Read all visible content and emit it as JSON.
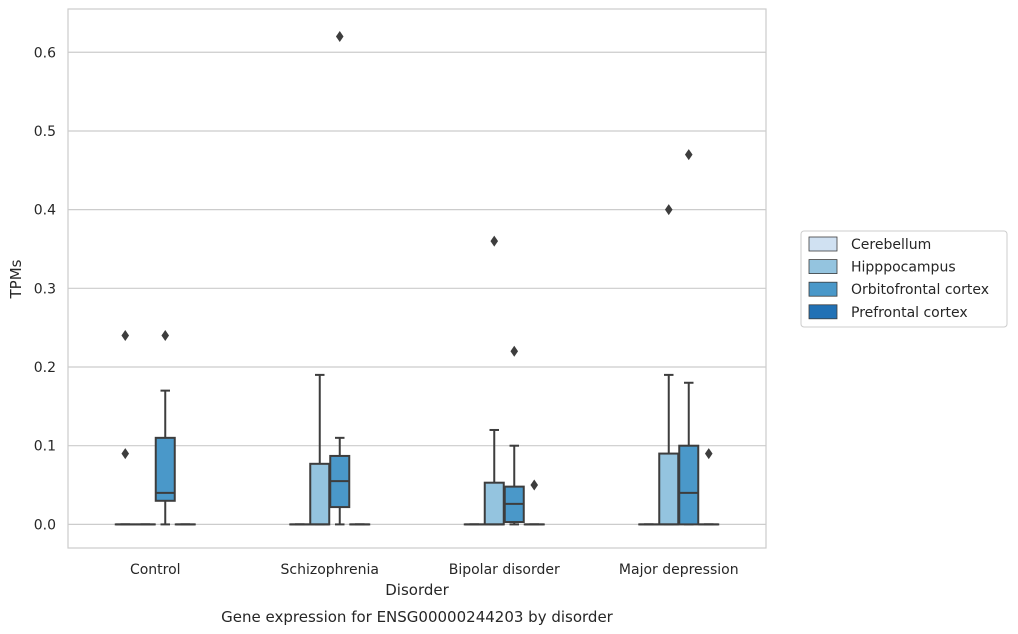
{
  "chart_data": {
    "type": "box",
    "caption": "Gene expression for ENSG00000244203 by disorder",
    "xlabel": "Disorder",
    "ylabel": "TPMs",
    "categories": [
      "Control",
      "Schizophrenia",
      "Bipolar disorder",
      "Major depression"
    ],
    "ylim": [
      -0.03,
      0.655
    ],
    "yticks": [
      0.0,
      0.1,
      0.2,
      0.3,
      0.4,
      0.5,
      0.6
    ],
    "ytick_labels": [
      "0.0",
      "0.1",
      "0.2",
      "0.3",
      "0.4",
      "0.5",
      "0.6"
    ],
    "grid": true,
    "legend_position": "right",
    "series": [
      {
        "name": "Cerebellum",
        "color": "#d0e1f2",
        "boxes": [
          {
            "category": "Control",
            "whisker_low": 0,
            "q1": 0,
            "median": 0,
            "q3": 0,
            "whisker_high": 0,
            "outliers": [
              0.09,
              0.24
            ]
          },
          {
            "category": "Schizophrenia",
            "whisker_low": 0,
            "q1": 0,
            "median": 0,
            "q3": 0,
            "whisker_high": 0,
            "outliers": []
          },
          {
            "category": "Bipolar disorder",
            "whisker_low": 0,
            "q1": 0,
            "median": 0,
            "q3": 0,
            "whisker_high": 0,
            "outliers": []
          },
          {
            "category": "Major depression",
            "whisker_low": 0,
            "q1": 0,
            "median": 0,
            "q3": 0,
            "whisker_high": 0,
            "outliers": []
          }
        ]
      },
      {
        "name": "Hipppocampus",
        "color": "#94c4df",
        "boxes": [
          {
            "category": "Control",
            "whisker_low": 0,
            "q1": 0,
            "median": 0,
            "q3": 0,
            "whisker_high": 0,
            "outliers": []
          },
          {
            "category": "Schizophrenia",
            "whisker_low": 0,
            "q1": 0,
            "median": 0,
            "q3": 0.077,
            "whisker_high": 0.19,
            "outliers": []
          },
          {
            "category": "Bipolar disorder",
            "whisker_low": 0,
            "q1": 0,
            "median": 0,
            "q3": 0.053,
            "whisker_high": 0.12,
            "outliers": [
              0.36
            ]
          },
          {
            "category": "Major depression",
            "whisker_low": 0,
            "q1": 0,
            "median": 0,
            "q3": 0.09,
            "whisker_high": 0.19,
            "outliers": [
              0.4
            ]
          }
        ]
      },
      {
        "name": "Orbitofrontal cortex",
        "color": "#4a98c9",
        "boxes": [
          {
            "category": "Control",
            "whisker_low": 0,
            "q1": 0.03,
            "median": 0.04,
            "q3": 0.11,
            "whisker_high": 0.17,
            "outliers": [
              0.24
            ]
          },
          {
            "category": "Schizophrenia",
            "whisker_low": 0,
            "q1": 0.022,
            "median": 0.055,
            "q3": 0.087,
            "whisker_high": 0.11,
            "outliers": [
              0.62
            ]
          },
          {
            "category": "Bipolar disorder",
            "whisker_low": 0,
            "q1": 0.003,
            "median": 0.026,
            "q3": 0.048,
            "whisker_high": 0.1,
            "outliers": [
              0.22
            ]
          },
          {
            "category": "Major depression",
            "whisker_low": 0,
            "q1": 0,
            "median": 0.04,
            "q3": 0.1,
            "whisker_high": 0.18,
            "outliers": [
              0.47
            ]
          }
        ]
      },
      {
        "name": "Prefrontal cortex",
        "color": "#2171b5",
        "boxes": [
          {
            "category": "Control",
            "whisker_low": 0,
            "q1": 0,
            "median": 0,
            "q3": 0,
            "whisker_high": 0,
            "outliers": []
          },
          {
            "category": "Schizophrenia",
            "whisker_low": 0,
            "q1": 0,
            "median": 0,
            "q3": 0,
            "whisker_high": 0,
            "outliers": []
          },
          {
            "category": "Bipolar disorder",
            "whisker_low": 0,
            "q1": 0,
            "median": 0,
            "q3": 0,
            "whisker_high": 0,
            "outliers": [
              0.05
            ]
          },
          {
            "category": "Major depression",
            "whisker_low": 0,
            "q1": 0,
            "median": 0,
            "q3": 0,
            "whisker_high": 0,
            "outliers": [
              0.09
            ]
          }
        ]
      }
    ],
    "colors": {
      "grid": "#cccccc",
      "frame": "#cccccc",
      "stroke": "#3d3d3d",
      "text": "#262626"
    }
  }
}
